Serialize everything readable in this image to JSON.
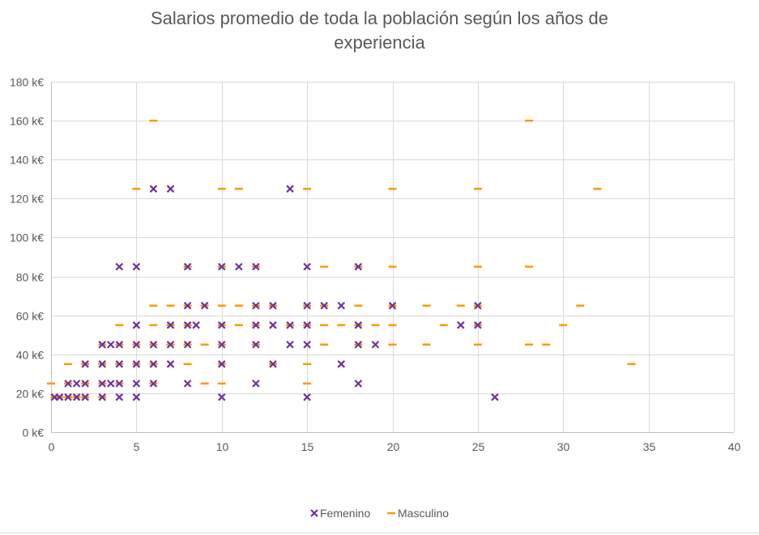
{
  "chart_data": {
    "type": "scatter",
    "title_lines": [
      "Salarios promedio de toda la población según los años de",
      "experiencia"
    ],
    "xlabel": "",
    "ylabel": "",
    "xlim": [
      0,
      40
    ],
    "ylim": [
      0,
      180
    ],
    "x_ticks": [
      0,
      5,
      10,
      15,
      20,
      25,
      30,
      35,
      40
    ],
    "y_ticks": [
      0,
      20,
      40,
      60,
      80,
      100,
      120,
      140,
      160,
      180
    ],
    "y_tick_labels": [
      "0 k€",
      "20 k€",
      "40 k€",
      "60 k€",
      "80 k€",
      "100 k€",
      "120 k€",
      "140 k€",
      "160 k€",
      "180 k€"
    ],
    "grid": true,
    "legend_position": "bottom",
    "series": [
      {
        "name": "Femenino",
        "marker": "x",
        "color": "#7030A0",
        "points": [
          [
            0.2,
            18
          ],
          [
            0.5,
            18
          ],
          [
            1,
            18
          ],
          [
            1.5,
            18
          ],
          [
            2,
            18
          ],
          [
            3,
            18
          ],
          [
            4,
            18
          ],
          [
            5,
            18
          ],
          [
            10,
            18
          ],
          [
            15,
            18
          ],
          [
            26,
            18
          ],
          [
            1,
            25
          ],
          [
            1.5,
            25
          ],
          [
            2,
            25
          ],
          [
            3,
            25
          ],
          [
            3.5,
            25
          ],
          [
            4,
            25
          ],
          [
            5,
            25
          ],
          [
            6,
            25
          ],
          [
            8,
            25
          ],
          [
            12,
            25
          ],
          [
            18,
            25
          ],
          [
            2,
            35
          ],
          [
            3,
            35
          ],
          [
            4,
            35
          ],
          [
            5,
            35
          ],
          [
            6,
            35
          ],
          [
            7,
            35
          ],
          [
            10,
            35
          ],
          [
            13,
            35
          ],
          [
            17,
            35
          ],
          [
            3,
            45
          ],
          [
            3.5,
            45
          ],
          [
            4,
            45
          ],
          [
            5,
            45
          ],
          [
            6,
            45
          ],
          [
            7,
            45
          ],
          [
            8,
            45
          ],
          [
            10,
            45
          ],
          [
            12,
            45
          ],
          [
            14,
            45
          ],
          [
            15,
            45
          ],
          [
            18,
            45
          ],
          [
            19,
            45
          ],
          [
            5,
            55
          ],
          [
            7,
            55
          ],
          [
            8,
            55
          ],
          [
            8.5,
            55
          ],
          [
            10,
            55
          ],
          [
            12,
            55
          ],
          [
            13,
            55
          ],
          [
            14,
            55
          ],
          [
            15,
            55
          ],
          [
            18,
            55
          ],
          [
            24,
            55
          ],
          [
            25,
            55
          ],
          [
            8,
            65
          ],
          [
            9,
            65
          ],
          [
            12,
            65
          ],
          [
            13,
            65
          ],
          [
            15,
            65
          ],
          [
            16,
            65
          ],
          [
            17,
            65
          ],
          [
            20,
            65
          ],
          [
            25,
            65
          ],
          [
            4,
            85
          ],
          [
            5,
            85
          ],
          [
            8,
            85
          ],
          [
            10,
            85
          ],
          [
            11,
            85
          ],
          [
            12,
            85
          ],
          [
            15,
            85
          ],
          [
            18,
            85
          ],
          [
            6,
            125
          ],
          [
            7,
            125
          ],
          [
            14,
            125
          ]
        ]
      },
      {
        "name": "Masculino",
        "marker": "dash",
        "color": "#FF9900",
        "points": [
          [
            0,
            25
          ],
          [
            1,
            25
          ],
          [
            2,
            25
          ],
          [
            3,
            25
          ],
          [
            4,
            25
          ],
          [
            6,
            25
          ],
          [
            9,
            25
          ],
          [
            10,
            25
          ],
          [
            15,
            25
          ],
          [
            0.2,
            18
          ],
          [
            0.5,
            18
          ],
          [
            1,
            18
          ],
          [
            1.5,
            18
          ],
          [
            2,
            18
          ],
          [
            3,
            18
          ],
          [
            1,
            35
          ],
          [
            2,
            35
          ],
          [
            3,
            35
          ],
          [
            4,
            35
          ],
          [
            5,
            35
          ],
          [
            6,
            35
          ],
          [
            8,
            35
          ],
          [
            10,
            35
          ],
          [
            13,
            35
          ],
          [
            15,
            35
          ],
          [
            3,
            45
          ],
          [
            4,
            45
          ],
          [
            5,
            45
          ],
          [
            6,
            45
          ],
          [
            7,
            45
          ],
          [
            8,
            45
          ],
          [
            9,
            45
          ],
          [
            10,
            45
          ],
          [
            12,
            45
          ],
          [
            16,
            45
          ],
          [
            18,
            45
          ],
          [
            20,
            45
          ],
          [
            22,
            45
          ],
          [
            25,
            45
          ],
          [
            28,
            45
          ],
          [
            29,
            45
          ],
          [
            4,
            55
          ],
          [
            6,
            55
          ],
          [
            7,
            55
          ],
          [
            8,
            55
          ],
          [
            10,
            55
          ],
          [
            11,
            55
          ],
          [
            12,
            55
          ],
          [
            14,
            55
          ],
          [
            15,
            55
          ],
          [
            16,
            55
          ],
          [
            17,
            55
          ],
          [
            18,
            55
          ],
          [
            19,
            55
          ],
          [
            20,
            55
          ],
          [
            23,
            55
          ],
          [
            25,
            55
          ],
          [
            30,
            55
          ],
          [
            6,
            65
          ],
          [
            7,
            65
          ],
          [
            8,
            65
          ],
          [
            9,
            65
          ],
          [
            10,
            65
          ],
          [
            11,
            65
          ],
          [
            12,
            65
          ],
          [
            13,
            65
          ],
          [
            15,
            65
          ],
          [
            16,
            65
          ],
          [
            18,
            65
          ],
          [
            20,
            65
          ],
          [
            22,
            65
          ],
          [
            24,
            65
          ],
          [
            25,
            65
          ],
          [
            31,
            65
          ],
          [
            8,
            85
          ],
          [
            10,
            85
          ],
          [
            12,
            85
          ],
          [
            16,
            85
          ],
          [
            18,
            85
          ],
          [
            20,
            85
          ],
          [
            25,
            85
          ],
          [
            28,
            85
          ],
          [
            5,
            125
          ],
          [
            10,
            125
          ],
          [
            11,
            125
          ],
          [
            15,
            125
          ],
          [
            20,
            125
          ],
          [
            25,
            125
          ],
          [
            32,
            125
          ],
          [
            6,
            160
          ],
          [
            28,
            160
          ],
          [
            34,
            35
          ]
        ]
      }
    ]
  }
}
